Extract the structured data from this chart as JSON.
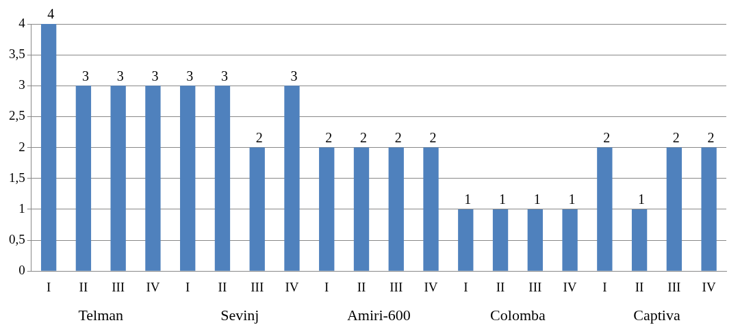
{
  "chart_data": {
    "type": "bar",
    "categories": [
      "I",
      "II",
      "III",
      "IV",
      "I",
      "II",
      "III",
      "IV",
      "I",
      "II",
      "III",
      "IV",
      "I",
      "II",
      "III",
      "IV",
      "I",
      "II",
      "III",
      "IV"
    ],
    "values": [
      4,
      3,
      3,
      3,
      3,
      3,
      2,
      3,
      2,
      2,
      2,
      2,
      1,
      1,
      1,
      1,
      2,
      1,
      2,
      2
    ],
    "color": "#4f81bd",
    "ylim": [
      0,
      4
    ],
    "yticks": [
      0,
      {
        "value": 0.5,
        "label": "0,5"
      },
      1,
      {
        "value": 1.5,
        "label": "1,5"
      },
      2,
      {
        "value": 2.5,
        "label": "2,5"
      },
      3,
      {
        "value": 3.5,
        "label": "3,5"
      },
      4
    ],
    "grid": "y",
    "data_labels": true,
    "legend": false,
    "annotations": [
      "Telman",
      "Sevinj",
      "Amiri-600",
      "Colomba",
      "Captiva"
    ]
  }
}
